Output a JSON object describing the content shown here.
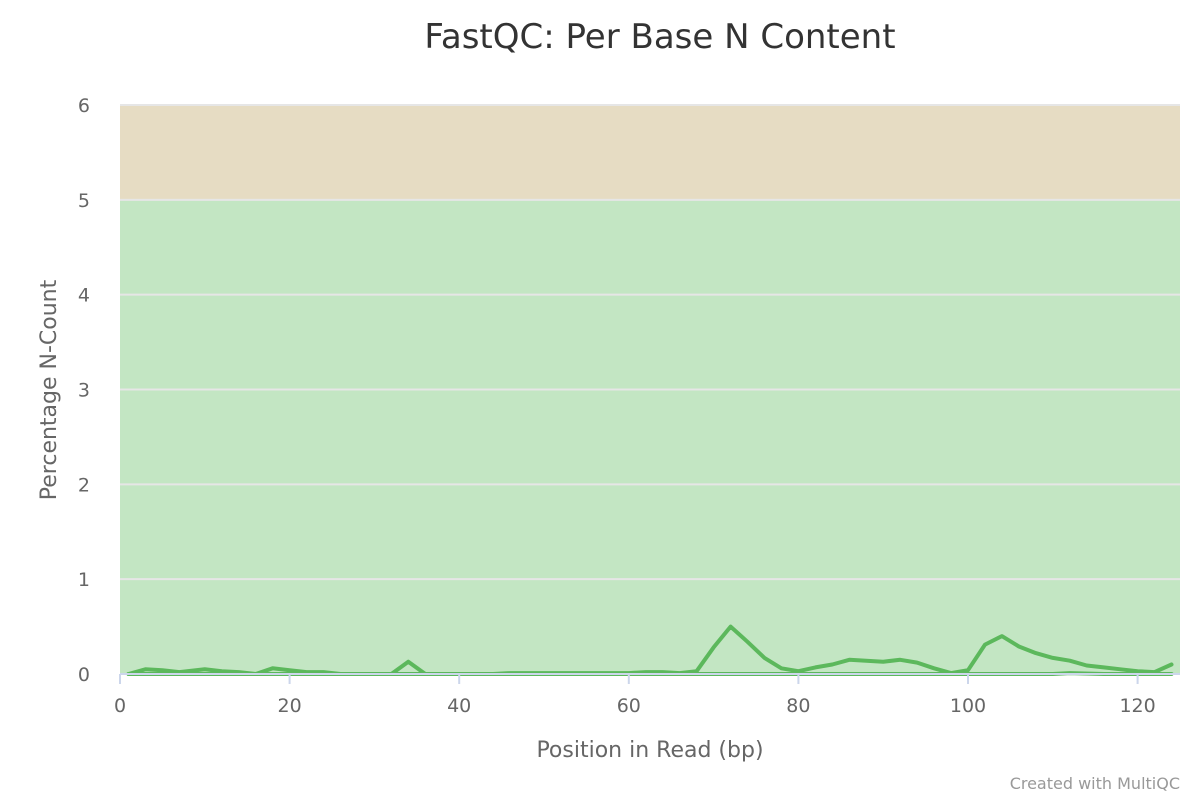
{
  "chart_data": {
    "type": "line",
    "title": "FastQC: Per Base N Content",
    "xlabel": "Position in Read (bp)",
    "ylabel": "Percentage N-Count",
    "xlim": [
      0,
      125
    ],
    "ylim": [
      0,
      6
    ],
    "xticks": [
      0,
      20,
      40,
      60,
      80,
      100,
      120
    ],
    "yticks": [
      0,
      1,
      2,
      3,
      4,
      5,
      6
    ],
    "grid": true,
    "bands": [
      {
        "from": 0,
        "to": 5,
        "color": "#c3e6c3"
      },
      {
        "from": 5,
        "to": 6,
        "color": "#e6dcc3"
      }
    ],
    "series": [
      {
        "color": "#5cb85c",
        "points": [
          [
            1,
            0.0
          ],
          [
            3,
            0.05
          ],
          [
            5,
            0.04
          ],
          [
            7,
            0.02
          ],
          [
            10,
            0.05
          ],
          [
            12,
            0.03
          ],
          [
            14,
            0.02
          ],
          [
            16,
            0.0
          ],
          [
            18,
            0.06
          ],
          [
            20,
            0.04
          ],
          [
            22,
            0.02
          ],
          [
            24,
            0.02
          ],
          [
            26,
            0.0
          ],
          [
            28,
            0.0
          ],
          [
            30,
            0.0
          ],
          [
            32,
            0.0
          ],
          [
            34,
            0.13
          ],
          [
            36,
            0.0
          ],
          [
            38,
            0.0
          ],
          [
            40,
            0.0
          ],
          [
            42,
            0.0
          ],
          [
            44,
            0.0
          ],
          [
            46,
            0.01
          ],
          [
            48,
            0.01
          ],
          [
            50,
            0.01
          ],
          [
            52,
            0.01
          ],
          [
            54,
            0.01
          ],
          [
            56,
            0.01
          ],
          [
            58,
            0.01
          ],
          [
            60,
            0.01
          ],
          [
            62,
            0.02
          ],
          [
            64,
            0.02
          ],
          [
            66,
            0.01
          ],
          [
            68,
            0.03
          ],
          [
            70,
            0.28
          ],
          [
            72,
            0.5
          ],
          [
            74,
            0.34
          ],
          [
            76,
            0.17
          ],
          [
            78,
            0.06
          ],
          [
            80,
            0.03
          ],
          [
            82,
            0.07
          ],
          [
            84,
            0.1
          ],
          [
            86,
            0.15
          ],
          [
            88,
            0.14
          ],
          [
            90,
            0.13
          ],
          [
            92,
            0.15
          ],
          [
            94,
            0.12
          ],
          [
            96,
            0.06
          ],
          [
            98,
            0.01
          ],
          [
            100,
            0.04
          ],
          [
            102,
            0.31
          ],
          [
            104,
            0.4
          ],
          [
            106,
            0.29
          ],
          [
            108,
            0.22
          ],
          [
            110,
            0.17
          ],
          [
            112,
            0.14
          ],
          [
            114,
            0.09
          ],
          [
            116,
            0.07
          ],
          [
            118,
            0.05
          ],
          [
            120,
            0.03
          ],
          [
            122,
            0.02
          ],
          [
            124,
            0.1
          ]
        ]
      },
      {
        "color": "#5cb85c",
        "points": [
          [
            1,
            0.0
          ],
          [
            20,
            0.0
          ],
          [
            40,
            0.0
          ],
          [
            60,
            0.0
          ],
          [
            80,
            0.0
          ],
          [
            100,
            0.0
          ],
          [
            110,
            0.0
          ],
          [
            112,
            0.01
          ],
          [
            116,
            0.0
          ],
          [
            124,
            0.0
          ]
        ]
      }
    ],
    "credit": "Created with MultiQC"
  }
}
